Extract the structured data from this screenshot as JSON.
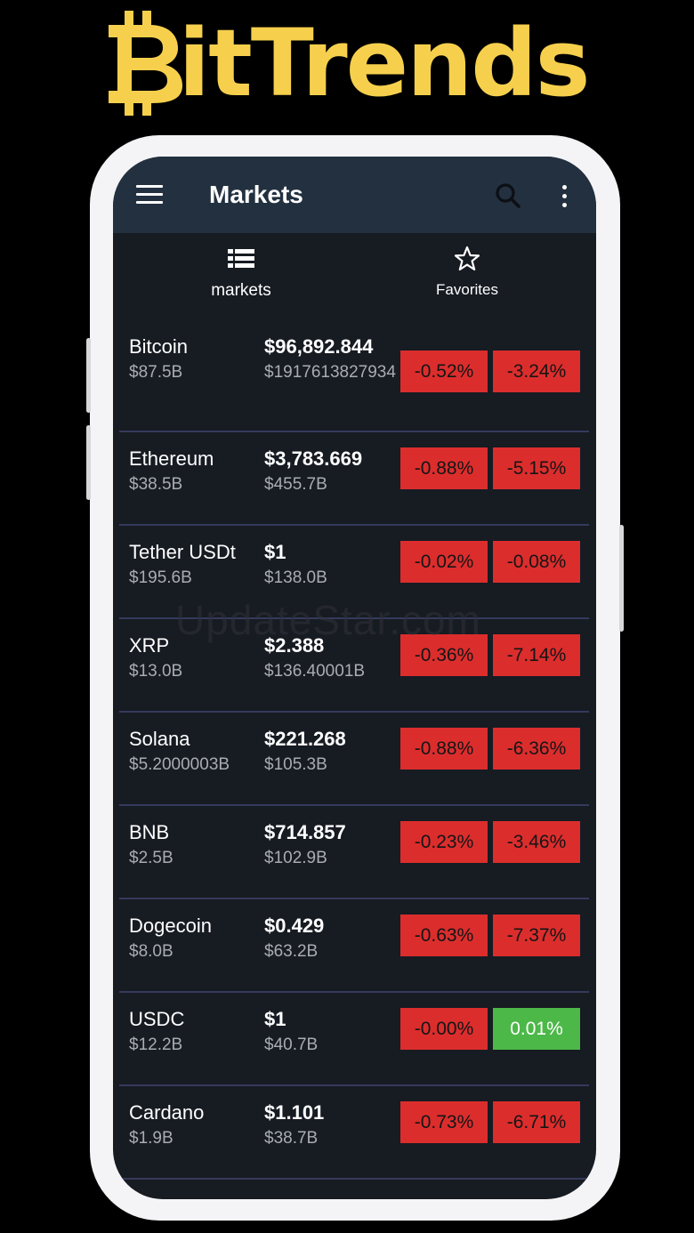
{
  "logo": {
    "text": "itTrends",
    "color": "#f6d04d",
    "icon": "bitcoin-icon"
  },
  "appbar": {
    "title": "Markets",
    "menu_icon": "hamburger-menu-icon",
    "search_icon": "search-icon",
    "more_icon": "more-vert-icon",
    "background": "#223040"
  },
  "tabs": [
    {
      "label": "markets",
      "icon": "list-icon"
    },
    {
      "label": "Favorites",
      "icon": "star-outline-icon"
    }
  ],
  "watermark": "UpdateStar.com",
  "coins": [
    {
      "name": "Bitcoin",
      "market_cap": "$87.5B",
      "price": "$96,892.844",
      "volume": "$1917613827934",
      "change_1": "-0.52%",
      "change_1_status": "negative",
      "change_2": "-3.24%",
      "change_2_status": "negative"
    },
    {
      "name": "Ethereum",
      "market_cap": "$38.5B",
      "price": "$3,783.669",
      "volume": "$455.7B",
      "change_1": "-0.88%",
      "change_1_status": "negative",
      "change_2": "-5.15%",
      "change_2_status": "negative"
    },
    {
      "name": "Tether USDt",
      "market_cap": "$195.6B",
      "price": "$1",
      "volume": "$138.0B",
      "change_1": "-0.02%",
      "change_1_status": "negative",
      "change_2": "-0.08%",
      "change_2_status": "negative"
    },
    {
      "name": "XRP",
      "market_cap": "$13.0B",
      "price": "$2.388",
      "volume": "$136.40001B",
      "change_1": "-0.36%",
      "change_1_status": "negative",
      "change_2": "-7.14%",
      "change_2_status": "negative"
    },
    {
      "name": "Solana",
      "market_cap": "$5.2000003B",
      "price": "$221.268",
      "volume": "$105.3B",
      "change_1": "-0.88%",
      "change_1_status": "negative",
      "change_2": "-6.36%",
      "change_2_status": "negative"
    },
    {
      "name": "BNB",
      "market_cap": "$2.5B",
      "price": "$714.857",
      "volume": "$102.9B",
      "change_1": "-0.23%",
      "change_1_status": "negative",
      "change_2": "-3.46%",
      "change_2_status": "negative"
    },
    {
      "name": "Dogecoin",
      "market_cap": "$8.0B",
      "price": "$0.429",
      "volume": "$63.2B",
      "change_1": "-0.63%",
      "change_1_status": "negative",
      "change_2": "-7.37%",
      "change_2_status": "negative"
    },
    {
      "name": "USDC",
      "market_cap": "$12.2B",
      "price": "$1",
      "volume": "$40.7B",
      "change_1": "-0.00%",
      "change_1_status": "negative",
      "change_2": "0.01%",
      "change_2_status": "positive"
    },
    {
      "name": "Cardano",
      "market_cap": "$1.9B",
      "price": "$1.101",
      "volume": "$38.7B",
      "change_1": "-0.73%",
      "change_1_status": "negative",
      "change_2": "-6.71%",
      "change_2_status": "negative"
    }
  ],
  "colors": {
    "negative": "#dc2d2d",
    "positive": "#4cb848",
    "screen_background": "#171b22",
    "divider": "#343a5c"
  }
}
